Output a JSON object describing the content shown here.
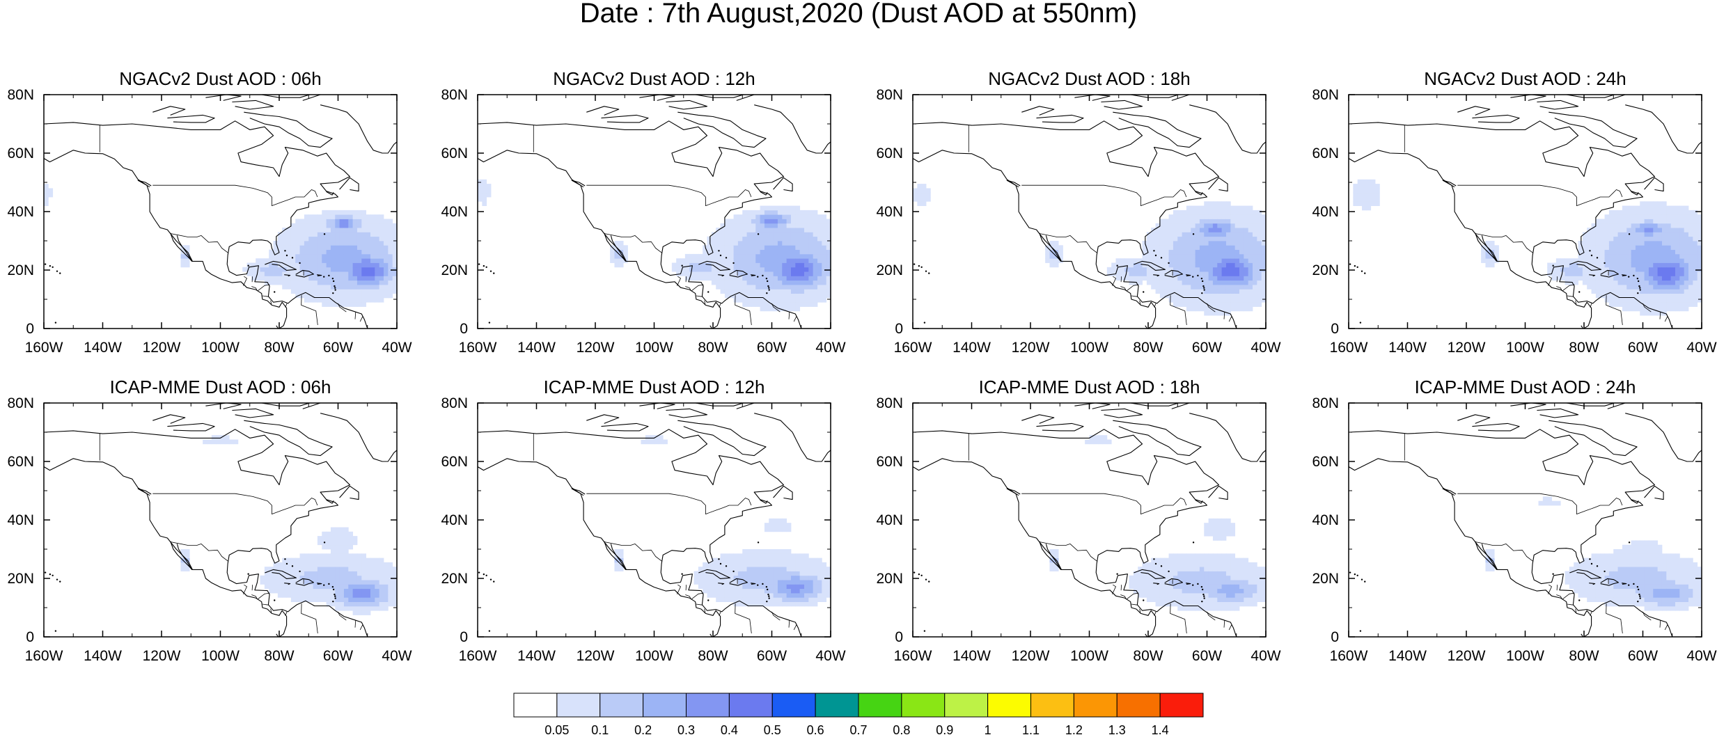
{
  "title": "Date : 7th August,2020 (Dust AOD at 550nm)",
  "map_extent": {
    "lon": [
      -160,
      -40
    ],
    "lat": [
      0,
      80
    ]
  },
  "lon_ticks": [
    -160,
    -140,
    -120,
    -100,
    -80,
    -60,
    -40
  ],
  "lon_labels": [
    "160W",
    "140W",
    "120W",
    "100W",
    "80W",
    "60W",
    "40W"
  ],
  "lat_ticks": [
    0,
    20,
    40,
    60,
    80
  ],
  "lat_labels": [
    "0",
    "20N",
    "40N",
    "60N",
    "80N"
  ],
  "panels": [
    {
      "title": "NGACv2 Dust AOD : 06h",
      "blobs": [
        {
          "lon": -58,
          "lat": 24,
          "rlon": 20,
          "rlat": 13,
          "level": 2
        },
        {
          "lon": -50,
          "lat": 20,
          "rlon": 9,
          "rlat": 6,
          "level": 4
        },
        {
          "lon": -58,
          "lat": 36,
          "rlon": 6,
          "rlat": 3,
          "level": 3
        },
        {
          "lon": -82,
          "lat": 20,
          "rlon": 9,
          "rlat": 4,
          "level": 1
        },
        {
          "lon": -112,
          "lat": 25,
          "rlon": 2,
          "rlat": 4,
          "level": 1
        },
        {
          "lon": -159,
          "lat": 46,
          "rlon": 2,
          "rlat": 5,
          "level": 0
        }
      ]
    },
    {
      "title": "NGACv2 Dust AOD : 12h",
      "blobs": [
        {
          "lon": -57,
          "lat": 24,
          "rlon": 21,
          "rlat": 14,
          "level": 2
        },
        {
          "lon": -51,
          "lat": 20,
          "rlon": 10,
          "rlat": 7,
          "level": 4
        },
        {
          "lon": -60,
          "lat": 37,
          "rlon": 7,
          "rlat": 3,
          "level": 3
        },
        {
          "lon": -84,
          "lat": 21,
          "rlon": 9,
          "rlat": 4,
          "level": 1
        },
        {
          "lon": -112,
          "lat": 26,
          "rlon": 3,
          "rlat": 4,
          "level": 1
        },
        {
          "lon": -158,
          "lat": 47,
          "rlon": 3,
          "rlat": 6,
          "level": 0
        }
      ]
    },
    {
      "title": "NGACv2 Dust AOD : 18h",
      "blobs": [
        {
          "lon": -56,
          "lat": 24,
          "rlon": 21,
          "rlat": 15,
          "level": 2
        },
        {
          "lon": -52,
          "lat": 20,
          "rlon": 10,
          "rlat": 7,
          "level": 4
        },
        {
          "lon": -57,
          "lat": 34,
          "rlon": 8,
          "rlat": 4,
          "level": 3
        },
        {
          "lon": -84,
          "lat": 20,
          "rlon": 9,
          "rlat": 4,
          "level": 1
        },
        {
          "lon": -112,
          "lat": 26,
          "rlon": 3,
          "rlat": 4,
          "level": 1
        },
        {
          "lon": -157,
          "lat": 46,
          "rlon": 4,
          "rlat": 6,
          "level": 0
        }
      ]
    },
    {
      "title": "NGACv2 Dust AOD : 24h",
      "blobs": [
        {
          "lon": -56,
          "lat": 24,
          "rlon": 21,
          "rlat": 15,
          "level": 2
        },
        {
          "lon": -52,
          "lat": 19,
          "rlon": 10,
          "rlat": 7,
          "level": 4
        },
        {
          "lon": -58,
          "lat": 34,
          "rlon": 7,
          "rlat": 3,
          "level": 3
        },
        {
          "lon": -84,
          "lat": 20,
          "rlon": 8,
          "rlat": 4,
          "level": 1
        },
        {
          "lon": -112,
          "lat": 26,
          "rlon": 3,
          "rlat": 4,
          "level": 1
        },
        {
          "lon": -154,
          "lat": 46,
          "rlon": 7,
          "rlat": 7,
          "level": 0
        }
      ]
    },
    {
      "title": "ICAP-MME Dust AOD : 06h",
      "blobs": [
        {
          "lon": -62,
          "lat": 20,
          "rlon": 22,
          "rlat": 8,
          "level": 1
        },
        {
          "lon": -52,
          "lat": 15,
          "rlon": 10,
          "rlat": 5,
          "level": 3
        },
        {
          "lon": -60,
          "lat": 33,
          "rlon": 9,
          "rlat": 6,
          "level": 0
        },
        {
          "lon": -112,
          "lat": 26,
          "rlon": 2,
          "rlat": 4,
          "level": 1
        },
        {
          "lon": -100,
          "lat": 67,
          "rlon": 8,
          "rlat": 2,
          "level": 0
        }
      ]
    },
    {
      "title": "ICAP-MME Dust AOD : 12h",
      "blobs": [
        {
          "lon": -62,
          "lat": 20,
          "rlon": 22,
          "rlat": 9,
          "level": 1
        },
        {
          "lon": -52,
          "lat": 17,
          "rlon": 10,
          "rlat": 5,
          "level": 3
        },
        {
          "lon": -58,
          "lat": 38,
          "rlon": 7,
          "rlat": 3,
          "level": 0
        },
        {
          "lon": -112,
          "lat": 26,
          "rlon": 2,
          "rlat": 4,
          "level": 1
        },
        {
          "lon": -100,
          "lat": 67,
          "rlon": 7,
          "rlat": 2,
          "level": 0
        }
      ]
    },
    {
      "title": "ICAP-MME Dust AOD : 18h",
      "blobs": [
        {
          "lon": -62,
          "lat": 19,
          "rlon": 22,
          "rlat": 9,
          "level": 1
        },
        {
          "lon": -52,
          "lat": 16,
          "rlon": 11,
          "rlat": 5,
          "level": 2
        },
        {
          "lon": -56,
          "lat": 37,
          "rlon": 8,
          "rlat": 5,
          "level": 0
        },
        {
          "lon": -112,
          "lat": 26,
          "rlon": 2,
          "rlat": 4,
          "level": 1
        },
        {
          "lon": -97,
          "lat": 67,
          "rlon": 7,
          "rlat": 2,
          "level": 0
        }
      ]
    },
    {
      "title": "ICAP-MME Dust AOD : 24h",
      "blobs": [
        {
          "lon": -62,
          "lat": 20,
          "rlon": 22,
          "rlat": 9,
          "level": 1
        },
        {
          "lon": -52,
          "lat": 15,
          "rlon": 11,
          "rlat": 5,
          "level": 2
        },
        {
          "lon": -60,
          "lat": 30,
          "rlon": 10,
          "rlat": 4,
          "level": 0
        },
        {
          "lon": -92,
          "lat": 46,
          "rlon": 5,
          "rlat": 2,
          "level": 0
        },
        {
          "lon": -112,
          "lat": 26,
          "rlon": 2,
          "rlat": 4,
          "level": 1
        }
      ]
    }
  ],
  "colorbar": {
    "labels": [
      "0.05",
      "0.1",
      "0.2",
      "0.3",
      "0.4",
      "0.5",
      "0.6",
      "0.7",
      "0.8",
      "0.9",
      "1",
      "1.1",
      "1.2",
      "1.3",
      "1.4"
    ],
    "colors": [
      "#ffffff",
      "#d8e2fb",
      "#bacbf7",
      "#9cb4f5",
      "#8396f2",
      "#6b7aef",
      "#1a5cf4",
      "#009593",
      "#46d413",
      "#8ae615",
      "#bdf246",
      "#fcfc00",
      "#fcbf12",
      "#fb9605",
      "#f77000",
      "#fa1d0b"
    ]
  },
  "colors": {
    "coast": "#000000",
    "frame": "#000000",
    "background": "#ffffff"
  }
}
